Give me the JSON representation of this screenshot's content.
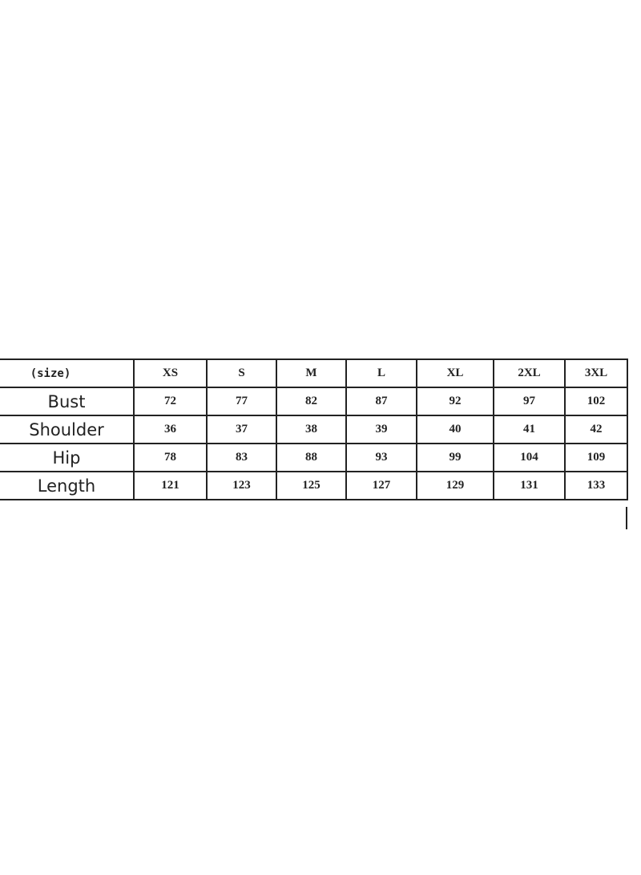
{
  "size_chart": {
    "header_label": "(size)",
    "sizes": [
      "XS",
      "S",
      "M",
      "L",
      "XL",
      "2XL",
      "3XL"
    ],
    "rows": [
      {
        "label": "Bust",
        "values": [
          "72",
          "77",
          "82",
          "87",
          "92",
          "97",
          "102"
        ]
      },
      {
        "label": "Shoulder",
        "values": [
          "36",
          "37",
          "38",
          "39",
          "40",
          "41",
          "42"
        ]
      },
      {
        "label": "Hip",
        "values": [
          "78",
          "83",
          "88",
          "93",
          "99",
          "104",
          "109"
        ]
      },
      {
        "label": "Length",
        "values": [
          "121",
          "123",
          "125",
          "127",
          "129",
          "131",
          "133"
        ]
      }
    ]
  }
}
